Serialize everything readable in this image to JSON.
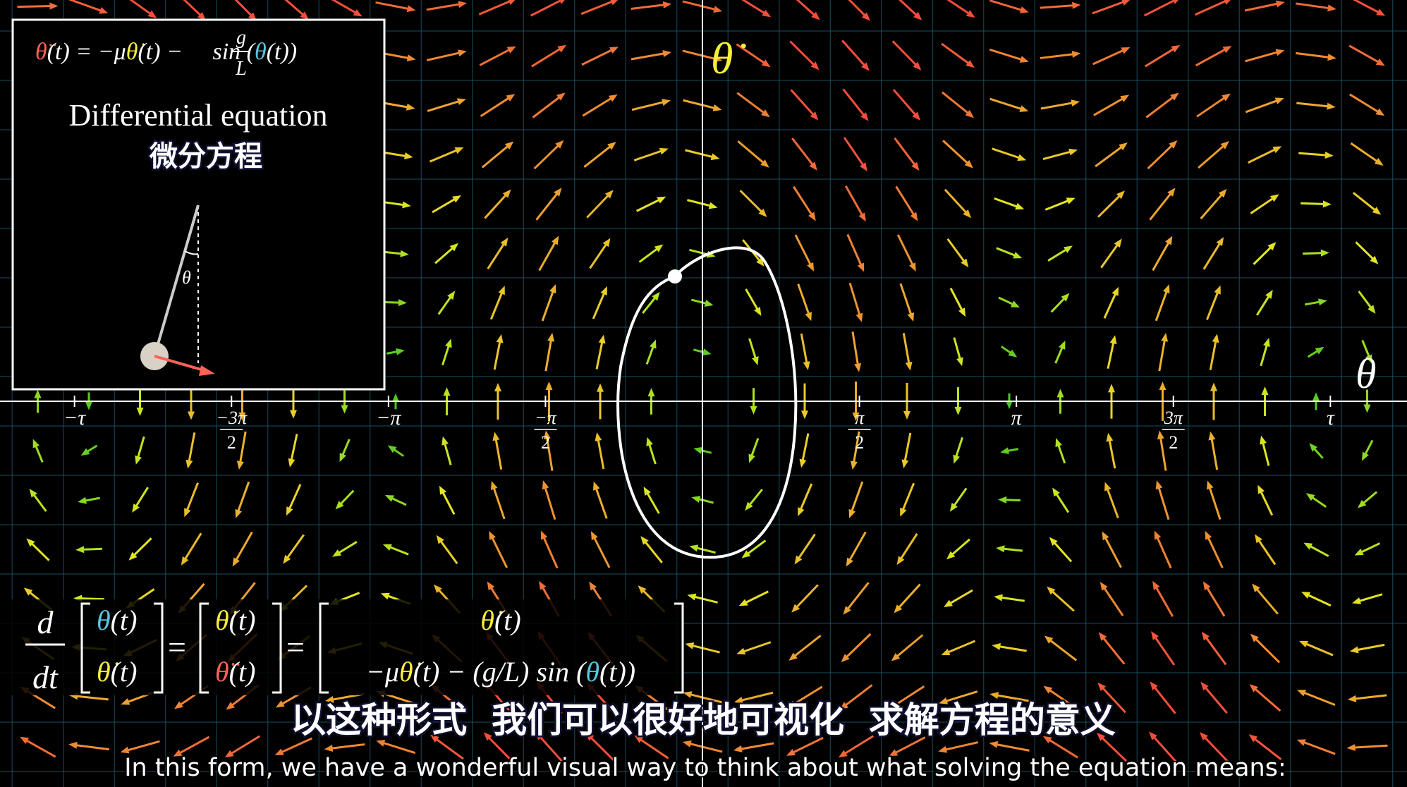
{
  "inset": {
    "equation": [
      "θ̈",
      "(t) = −μ",
      "θ̇",
      "(t) − ",
      "g",
      "L",
      " sin (",
      "θ",
      "(t))"
    ],
    "title": "Differential equation",
    "title_zh": "微分方程",
    "angle_label": "θ"
  },
  "axes": {
    "y_label": "θ̇",
    "x_label": "θ",
    "ticks": [
      "−τ",
      {
        "numerator": "−3π",
        "denominator": "2"
      },
      "−π",
      {
        "numerator": "−π",
        "denominator": "2"
      },
      {
        "numerator": "π",
        "denominator": "2"
      },
      "π",
      {
        "numerator": "3π",
        "denominator": "2"
      },
      "τ"
    ]
  },
  "matrix_equation": {
    "d": "d",
    "dt": "dt",
    "equals": "=",
    "left": [
      [
        "θ",
        "(t)"
      ],
      [
        "θ̇",
        "(t)"
      ]
    ],
    "middle": [
      [
        "θ̇",
        "(t)"
      ],
      [
        "θ̈",
        "(t)"
      ]
    ],
    "right_top": [
      "θ̇",
      "(t)"
    ],
    "right_bottom": [
      "−μ",
      "θ̇",
      "(t) − (g/L) sin (",
      "θ",
      "(t))"
    ]
  },
  "subtitles": {
    "zh": "以这种形式  我们可以很好地可视化  求解方程的意义",
    "en": "In this form, we have a wonderful visual way to think about what solving the equation means:"
  }
}
